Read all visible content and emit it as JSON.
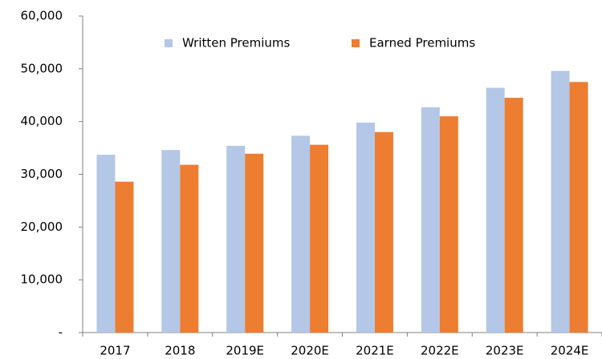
{
  "chart_data": {
    "type": "bar",
    "categories": [
      "2017",
      "2018",
      "2019E",
      "2020E",
      "2021E",
      "2022E",
      "2023E",
      "2024E"
    ],
    "series": [
      {
        "name": "Written Premiums",
        "color": "#b4c7e7",
        "values": [
          33700,
          34600,
          35400,
          37300,
          39800,
          42700,
          46400,
          49600
        ]
      },
      {
        "name": "Earned Premiums",
        "color": "#ed7d31",
        "values": [
          28600,
          31800,
          33900,
          35600,
          38000,
          41000,
          44500,
          47500
        ]
      }
    ],
    "ylim": [
      0,
      60000
    ],
    "yticks": [
      {
        "value": 0,
        "label": "-"
      },
      {
        "value": 10000,
        "label": "10,000"
      },
      {
        "value": 20000,
        "label": "20,000"
      },
      {
        "value": 30000,
        "label": "30,000"
      },
      {
        "value": 40000,
        "label": "40,000"
      },
      {
        "value": 50000,
        "label": "50,000"
      },
      {
        "value": 60000,
        "label": "60,000"
      }
    ],
    "grid": false,
    "legend": "top"
  }
}
